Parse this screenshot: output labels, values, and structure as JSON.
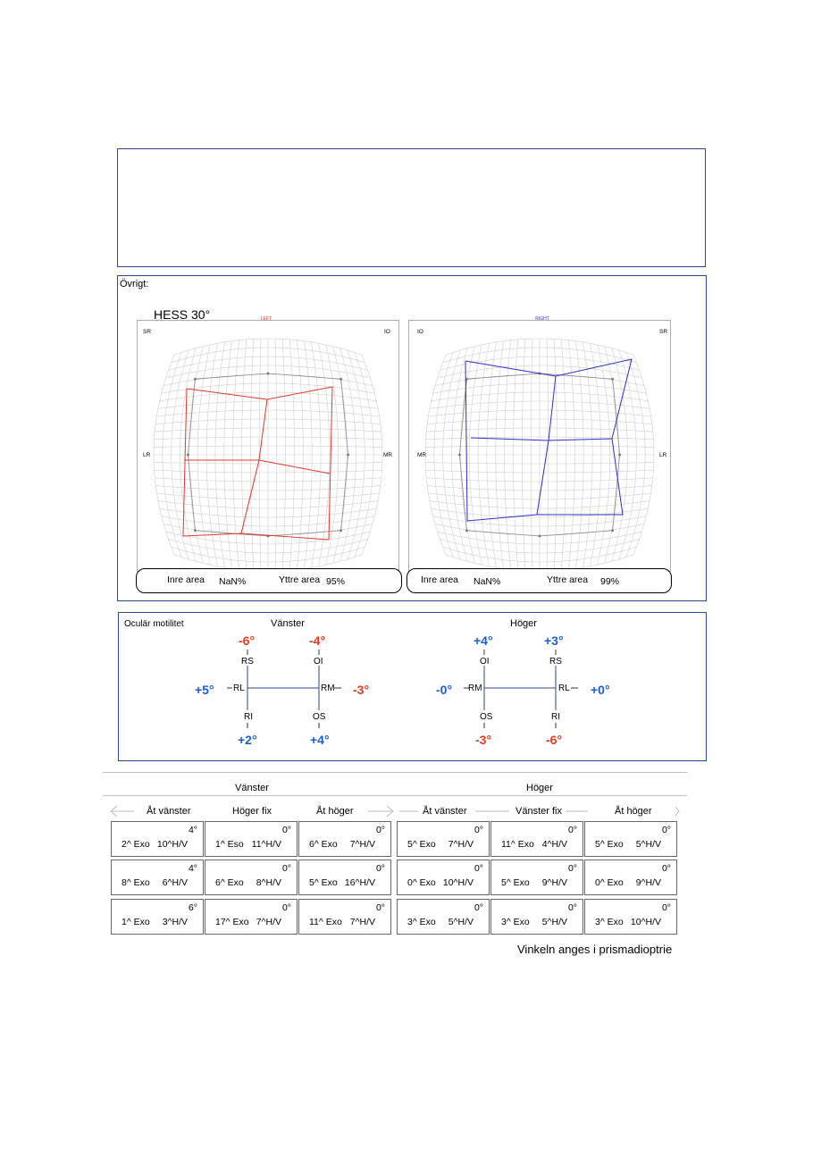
{
  "top_box": {},
  "ovrigt": {
    "label": "Övrigt:",
    "hess_title": "HESS 30°",
    "left_chart": {
      "header": "LEFT",
      "corners": {
        "tl": "SR",
        "tr": "IO",
        "ml": "LR",
        "mr": "MR"
      },
      "inner_label": "Inre area",
      "inner_value": "NaN%",
      "outer_label": "Yttre area",
      "outer_value": "95%",
      "color": "#e0392b"
    },
    "right_chart": {
      "header": "RIGHT",
      "corners": {
        "tl": "IO",
        "tr": "SR",
        "ml": "MR",
        "mr": "LR"
      },
      "inner_label": "Inre area",
      "inner_value": "NaN%",
      "outer_label": "Yttre area",
      "outer_value": "99%",
      "color": "#2b2fc8"
    }
  },
  "motility": {
    "title": "Oculär motilitet",
    "left": {
      "title": "Vänster",
      "rs": "RS",
      "oi": "OI",
      "rl": "RL",
      "rm": "RM",
      "ri": "RI",
      "os": "OS",
      "rs_deg": "-6°",
      "oi_deg": "-4°",
      "rl_deg": "+5°",
      "rm_deg": "-3°",
      "ri_deg": "+2°",
      "os_deg": "+4°"
    },
    "right": {
      "title": "Höger",
      "oi": "OI",
      "rs": "RS",
      "rm": "RM",
      "rl": "RL",
      "os": "OS",
      "ri": "RI",
      "oi_deg": "+4°",
      "rs_deg": "+3°",
      "rm_deg": "-0°",
      "rl_deg": "+0°",
      "os_deg": "-3°",
      "ri_deg": "-6°"
    },
    "colors": {
      "negative": "#e8391e",
      "positive": "#1a5fd6"
    }
  },
  "cover_test": {
    "left_group": "Vänster",
    "right_group": "Höger",
    "columns": [
      "Åt vänster",
      "Höger fix",
      "Åt höger",
      "Åt vänster",
      "Vänster fix",
      "Åt höger"
    ],
    "rows": [
      [
        {
          "deg": "4°",
          "a": "2^ Exo",
          "b": "10^H/V"
        },
        {
          "deg": "0°",
          "a": "1^ Eso",
          "b": "11^H/V"
        },
        {
          "deg": "0°",
          "a": "6^ Exo",
          "b": "7^H/V"
        },
        {
          "deg": "0°",
          "a": "5^ Exo",
          "b": "7^H/V"
        },
        {
          "deg": "0°",
          "a": "11^ Exo",
          "b": "4^H/V"
        },
        {
          "deg": "0°",
          "a": "5^ Exo",
          "b": "5^H/V"
        }
      ],
      [
        {
          "deg": "4°",
          "a": "8^ Exo",
          "b": "6^H/V"
        },
        {
          "deg": "0°",
          "a": "6^ Exo",
          "b": "8^H/V"
        },
        {
          "deg": "0°",
          "a": "5^ Exo",
          "b": "16^H/V"
        },
        {
          "deg": "0°",
          "a": "0^ Exo",
          "b": "10^H/V"
        },
        {
          "deg": "0°",
          "a": "5^ Exo",
          "b": "9^H/V"
        },
        {
          "deg": "0°",
          "a": "0^ Exo",
          "b": "9^H/V"
        }
      ],
      [
        {
          "deg": "6°",
          "a": "1^ Exo",
          "b": "3^H/V"
        },
        {
          "deg": "0°",
          "a": "17^ Exo",
          "b": "7^H/V"
        },
        {
          "deg": "0°",
          "a": "11^ Exo",
          "b": "7^H/V"
        },
        {
          "deg": "0°",
          "a": "3^ Exo",
          "b": "5^H/V"
        },
        {
          "deg": "0°",
          "a": "3^ Exo",
          "b": "5^H/V"
        },
        {
          "deg": "0°",
          "a": "3^ Exo",
          "b": "10^H/V"
        }
      ]
    ],
    "footnote": "Vinkeln anges i prismadioptrie"
  }
}
